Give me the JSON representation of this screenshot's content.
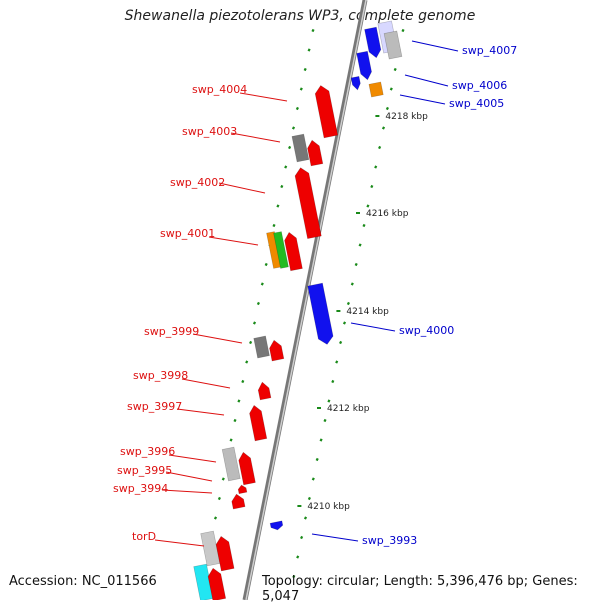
{
  "title": "Shewanella piezotolerans WP3, complete genome",
  "footer": {
    "accession": "Accession: NC_011566",
    "topology": "Topology: circular; Length: 5,396,476 bp; Genes: 5,047"
  },
  "colors": {
    "forward_label": "#dd1111",
    "reverse_label": "#0000cc",
    "tick": "#1a8a1a",
    "backbone": "#888888"
  },
  "kbp_labels": [
    "4218 kbp",
    "4216 kbp",
    "4214 kbp",
    "4212 kbp",
    "4210 kbp"
  ],
  "genes": [
    {
      "label": "swp_4007",
      "strand": "reverse"
    },
    {
      "label": "swp_4006",
      "strand": "reverse"
    },
    {
      "label": "swp_4005",
      "strand": "reverse"
    },
    {
      "label": "swp_4004",
      "strand": "forward"
    },
    {
      "label": "swp_4003",
      "strand": "forward"
    },
    {
      "label": "swp_4002",
      "strand": "forward"
    },
    {
      "label": "swp_4001",
      "strand": "forward"
    },
    {
      "label": "swp_4000",
      "strand": "reverse"
    },
    {
      "label": "swp_3999",
      "strand": "forward"
    },
    {
      "label": "swp_3998",
      "strand": "forward"
    },
    {
      "label": "swp_3997",
      "strand": "forward"
    },
    {
      "label": "swp_3996",
      "strand": "forward"
    },
    {
      "label": "swp_3995",
      "strand": "forward"
    },
    {
      "label": "swp_3994",
      "strand": "forward"
    },
    {
      "label": "swp_3993",
      "strand": "reverse"
    },
    {
      "label": "torD",
      "strand": "forward"
    }
  ]
}
